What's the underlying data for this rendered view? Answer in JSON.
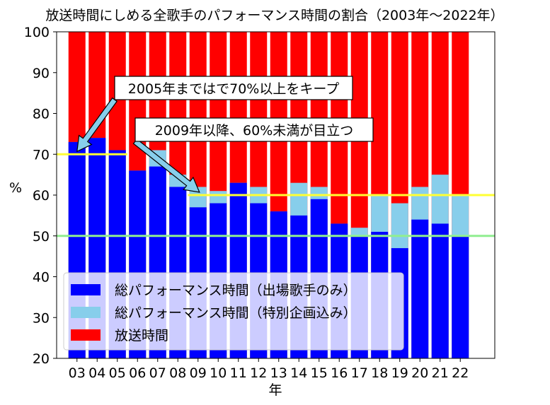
{
  "chart_data": {
    "type": "bar",
    "title": "放送時間にしめる全歌手のパフォーマンス時間の割合（2003年〜2022年）",
    "xlabel": "年",
    "ylabel": "%",
    "ylim": [
      20,
      100
    ],
    "yticks": [
      "20",
      "30",
      "40",
      "50",
      "60",
      "70",
      "80",
      "90",
      "100"
    ],
    "categories": [
      "03",
      "04",
      "05",
      "06",
      "07",
      "08",
      "09",
      "10",
      "11",
      "12",
      "13",
      "14",
      "15",
      "16",
      "17",
      "18",
      "19",
      "20",
      "21",
      "22"
    ],
    "series": [
      {
        "name": "放送時間",
        "color": "#ff0000",
        "values": [
          100,
          100,
          100,
          100,
          100,
          100,
          100,
          100,
          100,
          100,
          100,
          100,
          100,
          100,
          100,
          100,
          100,
          100,
          100,
          100
        ]
      },
      {
        "name": "総パフォーマンス時間（特別企画込み）",
        "color": "#87ceeb",
        "values": [
          73,
          74,
          71,
          66,
          71,
          65,
          62,
          61,
          63,
          62,
          56,
          63,
          62,
          53,
          52,
          60,
          58,
          62,
          65,
          60
        ]
      },
      {
        "name": "総パフォーマンス時間（出場歌手のみ）",
        "color": "#0000ff",
        "values": [
          73,
          74,
          71,
          66,
          67,
          62,
          57,
          58,
          63,
          58,
          56,
          55,
          59,
          53,
          50,
          51,
          47,
          54,
          53,
          50
        ]
      }
    ],
    "legend_order": [
      2,
      1,
      0
    ],
    "legend_position": "lower-left",
    "reference_lines": [
      {
        "value": 70,
        "from": "03",
        "to": "05",
        "color": "#ffff33"
      },
      {
        "value": 60,
        "from": "09",
        "to": "22",
        "color": "#ffff33"
      },
      {
        "value": 50,
        "from": "03",
        "to": "22",
        "color": "#90ee90"
      }
    ],
    "annotations": [
      {
        "text": "2005年まではで70%以上をキープ",
        "arrow_to_category": "03",
        "arrow_to_value": 70
      },
      {
        "text": "2009年以降、60%未満が目立つ",
        "arrow_to_category": "09",
        "arrow_to_value": 60
      }
    ]
  }
}
